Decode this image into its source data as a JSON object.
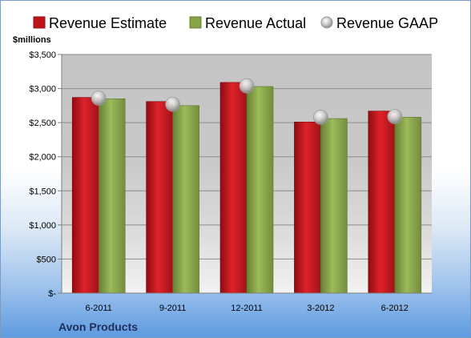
{
  "chart_data": {
    "type": "bar",
    "title": "",
    "unit_label": "$millions",
    "categories": [
      "6-2011",
      "9-2011",
      "12-2011",
      "3-2012",
      "6-2012"
    ],
    "series": [
      {
        "name": "Revenue Estimate",
        "kind": "bar",
        "color": "#c0141c",
        "values": [
          2870,
          2810,
          3090,
          2510,
          2670
        ]
      },
      {
        "name": "Revenue Actual",
        "kind": "bar",
        "color": "#86a446",
        "values": [
          2850,
          2750,
          3030,
          2560,
          2580
        ]
      },
      {
        "name": "Revenue GAAP",
        "kind": "marker",
        "color": "#c8c8c8",
        "values": [
          2860,
          2770,
          3040,
          2580,
          2590
        ]
      }
    ],
    "y_ticks": [
      "$-",
      "$500",
      "$1,000",
      "$1,500",
      "$2,000",
      "$2,500",
      "$3,000",
      "$3,500"
    ],
    "ylim": [
      0,
      3500
    ],
    "y_step": 500,
    "grid": true,
    "legend_position": "top",
    "company": "Avon Products"
  }
}
